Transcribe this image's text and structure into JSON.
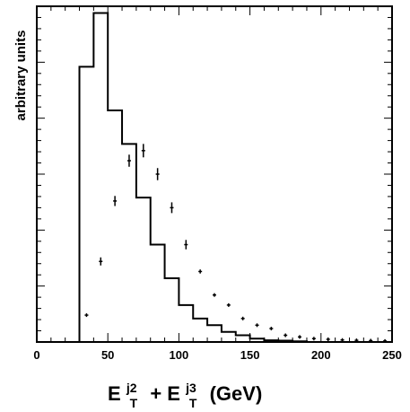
{
  "chart_data": {
    "type": "line",
    "title": "",
    "xlabel": "E_T^j2+E_T^j3 (GeV)",
    "xlabel_parts": {
      "main1": "E",
      "sub1": "T",
      "sup1": "j2",
      "plus": "+",
      "main2": "E",
      "sub2": "T",
      "sup2": "j3",
      "unit": " (GeV)"
    },
    "ylabel": "arbitrary units",
    "xlim": [
      0,
      250
    ],
    "ylim": [
      0,
      1
    ],
    "x_ticks": [
      "0",
      "50",
      "100",
      "150",
      "200",
      "250"
    ],
    "x_tick_values": [
      0,
      50,
      100,
      150,
      200,
      250
    ],
    "grid": false,
    "legend": "none",
    "series": [
      {
        "style": "histogram",
        "color": "#000000",
        "bin_edges": [
          30,
          40,
          50,
          60,
          70,
          80,
          90,
          100,
          110,
          120,
          130,
          140,
          150,
          160,
          170,
          180,
          190
        ],
        "values": [
          0.82,
          0.98,
          0.69,
          0.59,
          0.43,
          0.29,
          0.19,
          0.11,
          0.07,
          0.05,
          0.03,
          0.02,
          0.01,
          0.005,
          0.004,
          0.002
        ]
      },
      {
        "style": "points",
        "color": "#000000",
        "x": [
          35,
          45,
          55,
          65,
          75,
          85,
          95,
          105,
          115,
          125,
          135,
          145,
          155,
          165,
          175,
          185,
          195,
          205,
          215,
          225,
          235,
          245
        ],
        "y": [
          0.08,
          0.24,
          0.42,
          0.54,
          0.57,
          0.5,
          0.4,
          0.29,
          0.21,
          0.14,
          0.11,
          0.07,
          0.05,
          0.04,
          0.02,
          0.015,
          0.01,
          0.008,
          0.006,
          0.005,
          0.004,
          0.003
        ],
        "err": [
          0.005,
          0.012,
          0.015,
          0.018,
          0.02,
          0.018,
          0.016,
          0.014,
          0.006,
          0.005,
          0.004,
          0.004,
          0.003,
          0.003,
          0.002,
          0.002,
          0.002,
          0.002,
          0.002,
          0.002,
          0.002,
          0.002
        ]
      }
    ]
  }
}
